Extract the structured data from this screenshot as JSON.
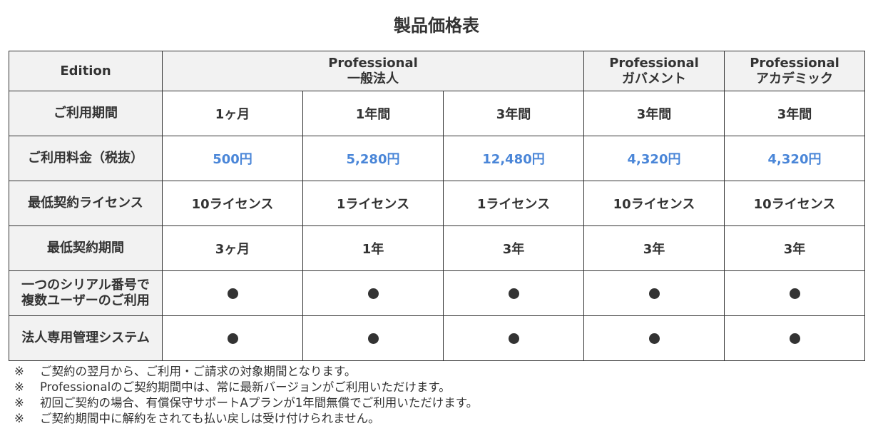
{
  "title": "製品価格表",
  "header": {
    "edition_label": "Edition",
    "columns": [
      {
        "line1": "Professional",
        "line2": "一般法人"
      },
      {
        "line1": "Professional",
        "line2": "ガバメント"
      },
      {
        "line1": "Professional",
        "line2": "アカデミック"
      }
    ]
  },
  "rows": {
    "period": {
      "label": "ご利用期間",
      "values": [
        "1ヶ月",
        "1年間",
        "3年間",
        "3年間",
        "3年間"
      ]
    },
    "price": {
      "label": "ご利用料金（税抜）",
      "values": [
        "500円",
        "5,280円",
        "12,480円",
        "4,320円",
        "4,320円"
      ]
    },
    "min_license": {
      "label": "最低契約ライセンス",
      "values": [
        "10ライセンス",
        "1ライセンス",
        "1ライセンス",
        "10ライセンス",
        "10ライセンス"
      ]
    },
    "min_term": {
      "label": "最低契約期間",
      "values": [
        "3ヶ月",
        "1年",
        "3年",
        "3年",
        "3年"
      ]
    },
    "multi_user": {
      "label_line1": "一つのシリアル番号で",
      "label_line2": "複数ユーザーのご利用",
      "values": [
        "●",
        "●",
        "●",
        "●",
        "●"
      ]
    },
    "management": {
      "label": "法人専用管理システム",
      "values": [
        "●",
        "●",
        "●",
        "●",
        "●"
      ]
    }
  },
  "notes": {
    "mark": "※",
    "items": [
      "ご契約の翌月から、ご利用・ご請求の対象期間となります。",
      "Professionalのご契約期間中は、常に最新バージョンがご利用いただけます。",
      "初回ご契約の場合、有償保守サポートAプランが1年間無償でご利用いただけます。",
      "ご契約期間中に解約をされても払い戻しは受け付けられません。"
    ]
  },
  "colors": {
    "price_accent": "#4a86d8",
    "header_bg": "#f2f2f2",
    "border": "#333333"
  }
}
